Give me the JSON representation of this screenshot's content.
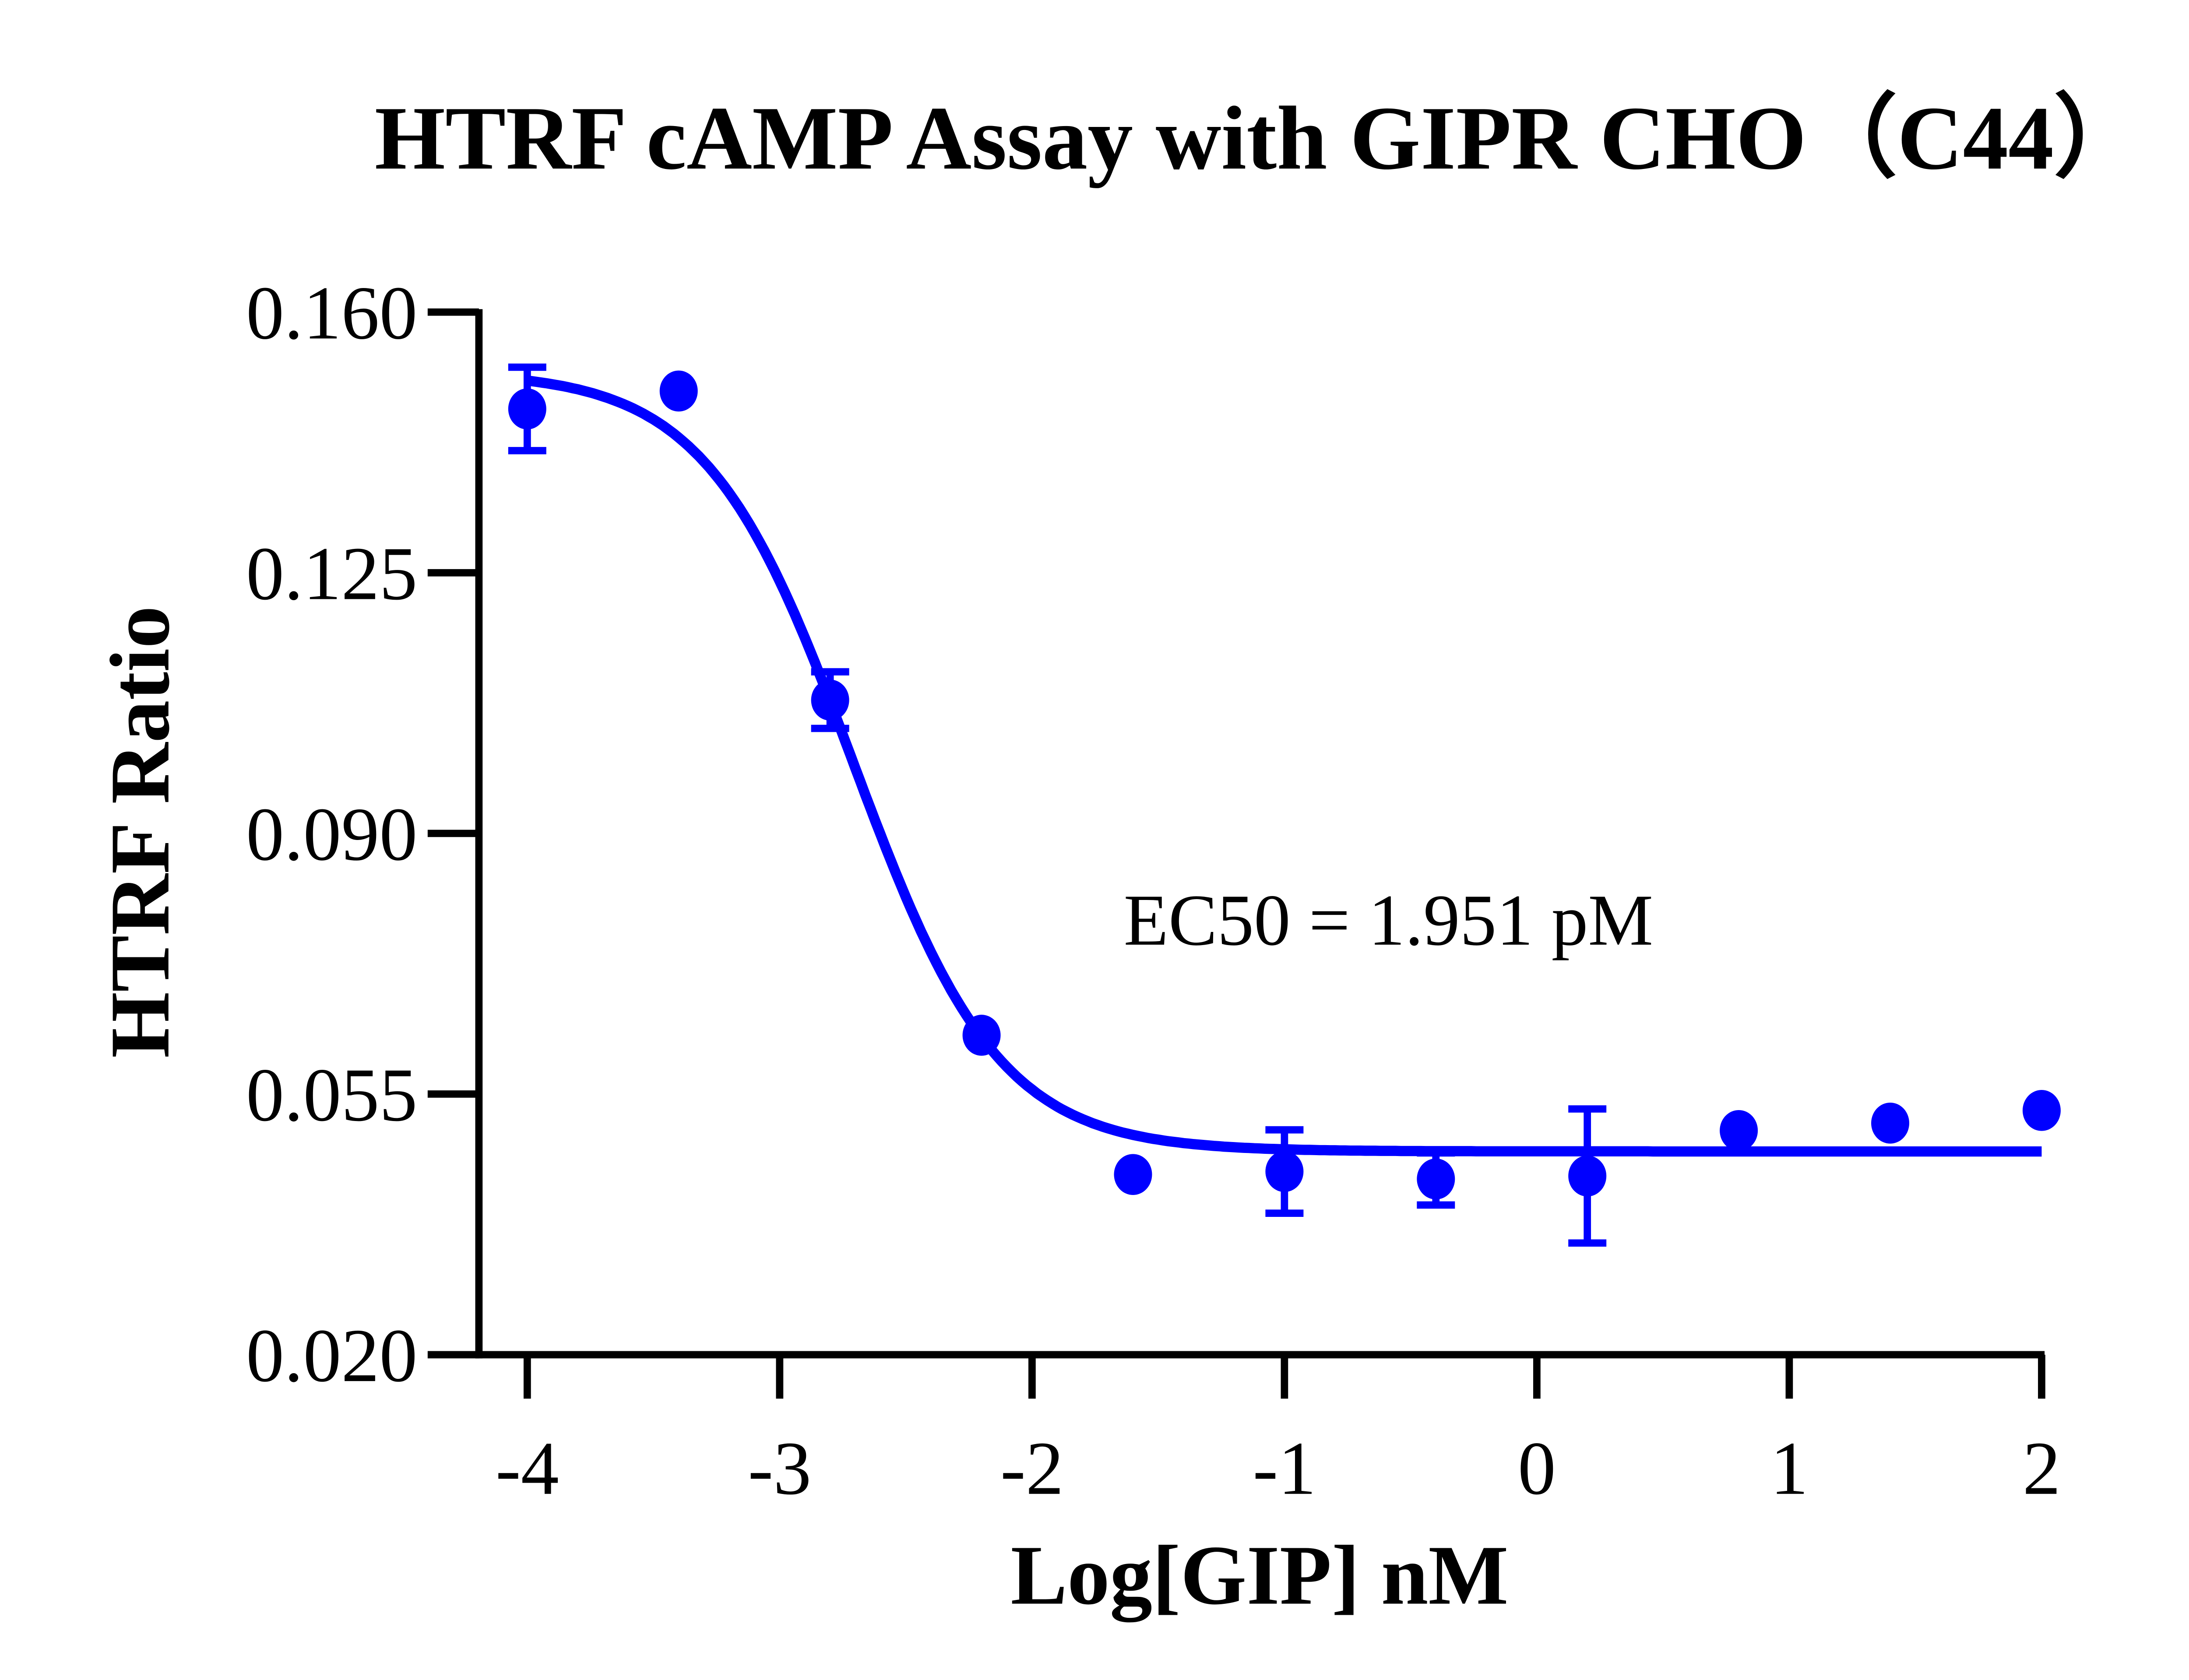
{
  "chart_data": {
    "type": "scatter",
    "title": "HTRF cAMP Assay with GIPR CHO（C44）",
    "xlabel": "Log[GIP] nM",
    "ylabel": "HTRF Ratio",
    "xlim": [
      -4.2,
      2
    ],
    "ylim": [
      0.02,
      0.16
    ],
    "x_ticks": [
      -4,
      -3,
      -2,
      -1,
      0,
      1,
      2
    ],
    "x_tick_labels": [
      "-4",
      "-3",
      "-2",
      "-1",
      "0",
      "1",
      "2"
    ],
    "y_ticks": [
      0.02,
      0.055,
      0.09,
      0.125,
      0.16
    ],
    "y_tick_labels": [
      "0.020",
      "0.055",
      "0.090",
      "0.125",
      "0.160"
    ],
    "grid": false,
    "color": "#0000FF",
    "annotation": "EC50 = 1.951 pM",
    "series": [
      {
        "x": [
          -4,
          -3.4,
          -2.8,
          -2.2,
          -1.6,
          -1,
          -0.4,
          0.2,
          0.8,
          1.4,
          2
        ],
        "y": [
          0.147,
          0.1494,
          0.1079,
          0.0629,
          0.0442,
          0.0446,
          0.0436,
          0.044,
          0.0501,
          0.0511,
          0.0528
        ],
        "error": [
          0.0056,
          0,
          0.0038,
          0,
          0,
          0.0056,
          0.0035,
          0.009,
          0,
          0,
          0
        ]
      }
    ],
    "fit": {
      "model": "four-parameter logistic",
      "top": 0.152,
      "bottom": 0.0473,
      "logEC50": -2.71,
      "hill_slope": -1.5
    }
  }
}
